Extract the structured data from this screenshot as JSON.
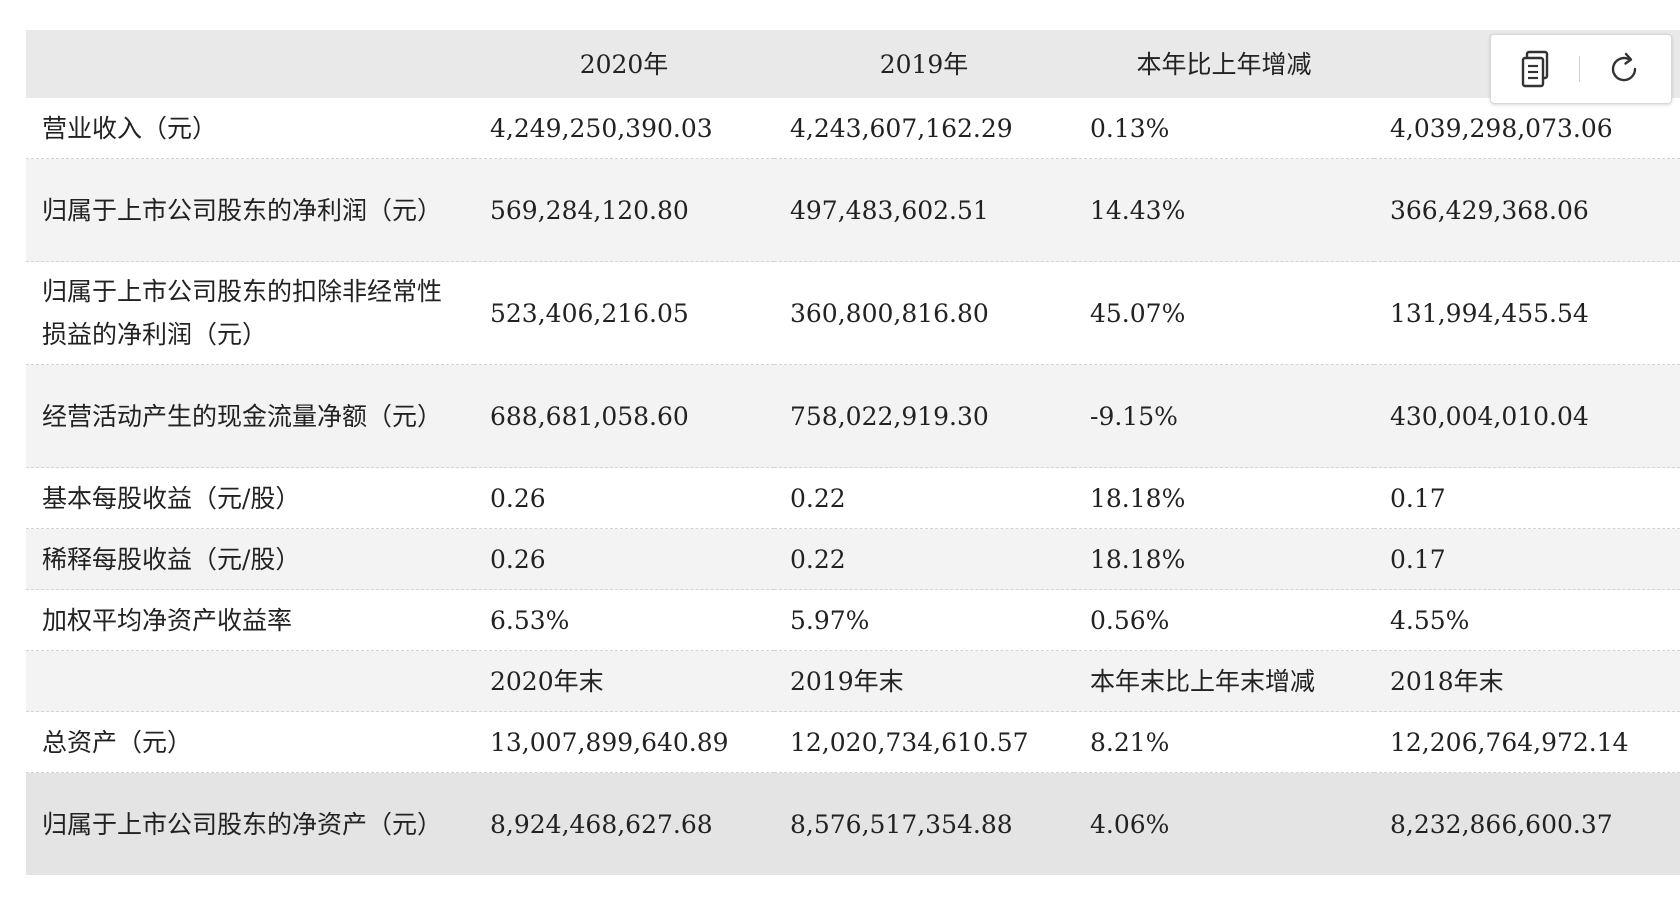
{
  "table": {
    "headers": [
      "",
      "2020年",
      "2019年",
      "本年比上年增减",
      ""
    ],
    "rows": [
      {
        "label": "营业收入（元）",
        "v2020": "4,249,250,390.03",
        "v2019": "4,243,607,162.29",
        "change": "0.13%",
        "v2018": "4,039,298,073.06"
      },
      {
        "label": "归属于上市公司股东的净利润（元）",
        "v2020": "569,284,120.80",
        "v2019": "497,483,602.51",
        "change": "14.43%",
        "v2018": "366,429,368.06"
      },
      {
        "label": "归属于上市公司股东的扣除非经常性损益的净利润（元）",
        "v2020": "523,406,216.05",
        "v2019": "360,800,816.80",
        "change": "45.07%",
        "v2018": "131,994,455.54"
      },
      {
        "label": "经营活动产生的现金流量净额（元）",
        "v2020": "688,681,058.60",
        "v2019": "758,022,919.30",
        "change": "-9.15%",
        "v2018": "430,004,010.04"
      },
      {
        "label": "基本每股收益（元/股）",
        "v2020": "0.26",
        "v2019": "0.22",
        "change": "18.18%",
        "v2018": "0.17"
      },
      {
        "label": "稀释每股收益（元/股）",
        "v2020": "0.26",
        "v2019": "0.22",
        "change": "18.18%",
        "v2018": "0.17"
      },
      {
        "label": "加权平均净资产收益率",
        "v2020": "6.53%",
        "v2019": "5.97%",
        "change": "0.56%",
        "v2018": "4.55%"
      },
      {
        "label": "",
        "v2020": "2020年末",
        "v2019": "2019年末",
        "change": "本年末比上年末增减",
        "v2018": "2018年末"
      },
      {
        "label": "总资产（元）",
        "v2020": "13,007,899,640.89",
        "v2019": "12,020,734,610.57",
        "change": "8.21%",
        "v2018": "12,206,764,972.14"
      },
      {
        "label": "归属于上市公司股东的净资产（元）",
        "v2020": "8,924,468,627.68",
        "v2019": "8,576,517,354.88",
        "change": "4.06%",
        "v2018": "8,232,866,600.37"
      }
    ]
  },
  "toolbar": {
    "copy_icon": "document-copy-icon",
    "refresh_icon": "refresh-icon"
  }
}
